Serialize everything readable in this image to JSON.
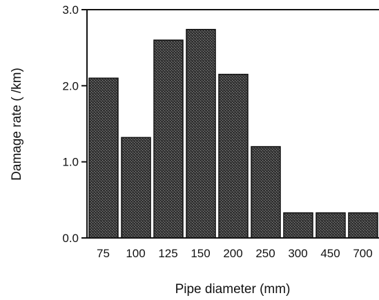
{
  "chart_data": {
    "type": "bar",
    "title": "",
    "xlabel": "Pipe diameter (mm)",
    "ylabel": "Damage rate ( /km)",
    "categories": [
      "75",
      "100",
      "125",
      "150",
      "200",
      "250",
      "300",
      "450",
      "700"
    ],
    "values": [
      2.1,
      1.32,
      2.6,
      2.74,
      2.15,
      1.2,
      0.33,
      0.33,
      0.33
    ],
    "ylim": [
      0,
      3.0
    ],
    "yticks": [
      "0.0",
      "1.0",
      "2.0",
      "3.0"
    ],
    "yticks_values": [
      0,
      1,
      2,
      3
    ],
    "grid": false,
    "legend": "none",
    "bar_color": "#2b2b2b"
  }
}
